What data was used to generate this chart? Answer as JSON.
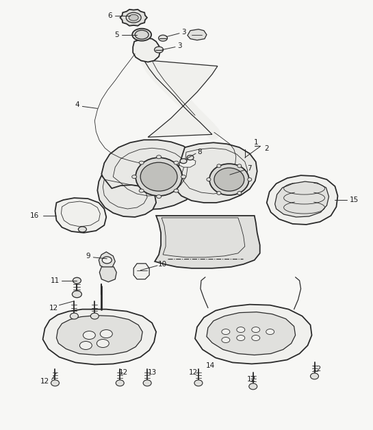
{
  "background_color": "#f7f7f5",
  "line_color": "#2a2a2a",
  "label_color": "#1a1a1a",
  "fig_width": 5.45,
  "fig_height": 6.28,
  "dpi": 100,
  "lw_main": 1.3,
  "lw_med": 0.9,
  "lw_thin": 0.6,
  "fill_tank": "#e8e8e5",
  "fill_light": "#f0f0ed",
  "fill_dark": "#d8d8d5",
  "fill_mid": "#e0e0dd"
}
